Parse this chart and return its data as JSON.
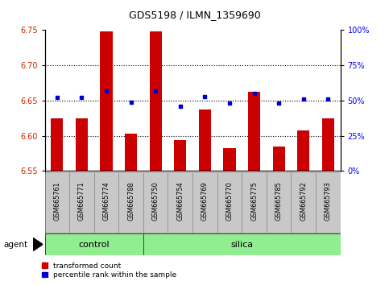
{
  "title": "GDS5198 / ILMN_1359690",
  "samples": [
    "GSM665761",
    "GSM665771",
    "GSM665774",
    "GSM665788",
    "GSM665750",
    "GSM665754",
    "GSM665769",
    "GSM665770",
    "GSM665775",
    "GSM665785",
    "GSM665792",
    "GSM665793"
  ],
  "n_control": 4,
  "bar_values": [
    6.625,
    6.625,
    6.748,
    6.603,
    6.748,
    6.594,
    6.637,
    6.582,
    6.662,
    6.585,
    6.607,
    6.625
  ],
  "blue_values": [
    52,
    52,
    57,
    49,
    57,
    46,
    53,
    48,
    55,
    48,
    51,
    51
  ],
  "ymin": 6.55,
  "ymax": 6.75,
  "y2min": 0,
  "y2max": 100,
  "yticks": [
    6.55,
    6.6,
    6.65,
    6.7,
    6.75
  ],
  "y2ticks": [
    0,
    25,
    50,
    75,
    100
  ],
  "bar_color": "#cc0000",
  "dot_color": "#0000cc",
  "bar_base": 6.55,
  "group_color": "#90EE90",
  "tick_bg_color": "#c8c8c8",
  "control_label": "control",
  "silica_label": "silica",
  "agent_label": "agent",
  "legend_items": [
    "transformed count",
    "percentile rank within the sample"
  ],
  "grid_yticks": [
    6.6,
    6.65,
    6.7
  ],
  "bar_width": 0.5
}
